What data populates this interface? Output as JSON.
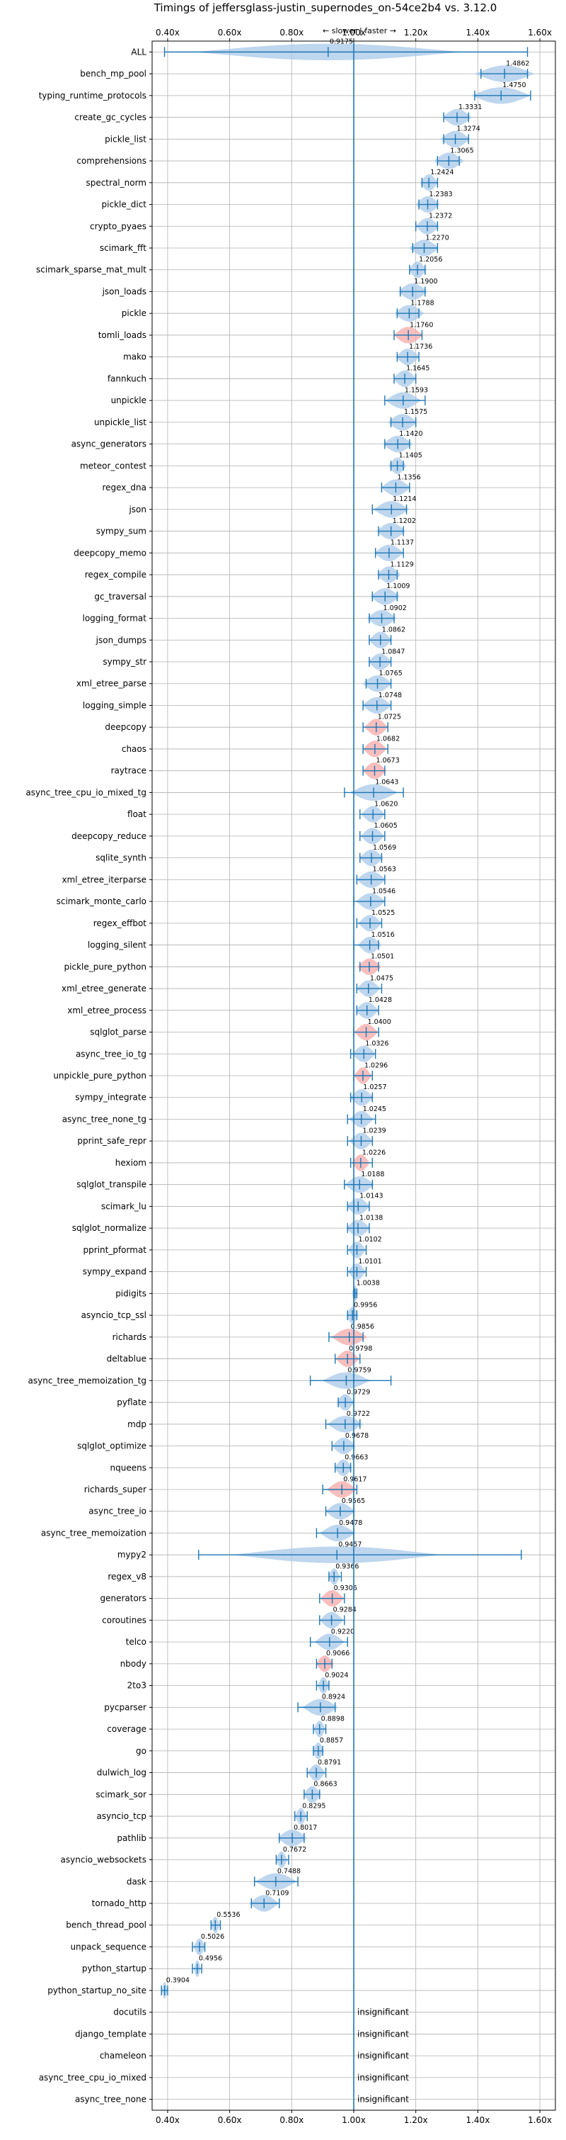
{
  "chart_data": {
    "type": "violin",
    "title": "Timings of jeffersglass-justin_supernodes_on-54ce2b4 vs. 3.12.0",
    "direction_label": "← slower | faster →",
    "xlim": [
      0.35,
      1.65
    ],
    "xticks": [
      0.4,
      0.6,
      0.8,
      1.0,
      1.2,
      1.4,
      1.6
    ],
    "xtick_labels": [
      "0.40x",
      "0.60x",
      "0.80x",
      "1.00x",
      "1.20x",
      "1.40x",
      "1.60x"
    ],
    "reference_line": 1.0,
    "grid": true,
    "colors": {
      "violin": "#a8c8e8",
      "violin_highlight": "#f4a8a8",
      "errorbar": "#1f77b4",
      "grid": "#b0b0b0"
    },
    "benchmarks": [
      {
        "name": "ALL",
        "value": 0.9175,
        "label": "0.9175",
        "lo": 0.39,
        "hi": 1.56,
        "spread": 0.45,
        "highlight": false
      },
      {
        "name": "bench_mp_pool",
        "value": 1.4862,
        "label": "1.4862",
        "lo": 1.41,
        "hi": 1.56,
        "spread": 0.1,
        "highlight": false
      },
      {
        "name": "typing_runtime_protocols",
        "value": 1.475,
        "label": "1.4750",
        "lo": 1.39,
        "hi": 1.57,
        "spread": 0.1,
        "highlight": false
      },
      {
        "name": "create_gc_cycles",
        "value": 1.3331,
        "label": "1.3331",
        "lo": 1.29,
        "hi": 1.37,
        "spread": 0.05,
        "highlight": false
      },
      {
        "name": "pickle_list",
        "value": 1.3274,
        "label": "1.3274",
        "lo": 1.29,
        "hi": 1.37,
        "spread": 0.05,
        "highlight": false
      },
      {
        "name": "comprehensions",
        "value": 1.3065,
        "label": "1.3065",
        "lo": 1.27,
        "hi": 1.34,
        "spread": 0.05,
        "highlight": false
      },
      {
        "name": "spectral_norm",
        "value": 1.2424,
        "label": "1.2424",
        "lo": 1.22,
        "hi": 1.27,
        "spread": 0.03,
        "highlight": false
      },
      {
        "name": "pickle_dict",
        "value": 1.2383,
        "label": "1.2383",
        "lo": 1.21,
        "hi": 1.27,
        "spread": 0.04,
        "highlight": false
      },
      {
        "name": "crypto_pyaes",
        "value": 1.2372,
        "label": "1.2372",
        "lo": 1.2,
        "hi": 1.27,
        "spread": 0.04,
        "highlight": false
      },
      {
        "name": "scimark_fft",
        "value": 1.227,
        "label": "1.2270",
        "lo": 1.19,
        "hi": 1.27,
        "spread": 0.05,
        "highlight": false
      },
      {
        "name": "scimark_sparse_mat_mult",
        "value": 1.2056,
        "label": "1.2056",
        "lo": 1.18,
        "hi": 1.23,
        "spread": 0.03,
        "highlight": false
      },
      {
        "name": "json_loads",
        "value": 1.19,
        "label": "1.1900",
        "lo": 1.15,
        "hi": 1.23,
        "spread": 0.05,
        "highlight": false
      },
      {
        "name": "pickle",
        "value": 1.1788,
        "label": "1.1788",
        "lo": 1.14,
        "hi": 1.21,
        "spread": 0.05,
        "highlight": false
      },
      {
        "name": "tomli_loads",
        "value": 1.176,
        "label": "1.1760",
        "lo": 1.13,
        "hi": 1.22,
        "spread": 0.05,
        "highlight": true
      },
      {
        "name": "mako",
        "value": 1.1736,
        "label": "1.1736",
        "lo": 1.14,
        "hi": 1.21,
        "spread": 0.04,
        "highlight": false
      },
      {
        "name": "fannkuch",
        "value": 1.1645,
        "label": "1.1645",
        "lo": 1.13,
        "hi": 1.2,
        "spread": 0.04,
        "highlight": false
      },
      {
        "name": "unpickle",
        "value": 1.1593,
        "label": "1.1593",
        "lo": 1.1,
        "hi": 1.23,
        "spread": 0.06,
        "highlight": false
      },
      {
        "name": "unpickle_list",
        "value": 1.1575,
        "label": "1.1575",
        "lo": 1.12,
        "hi": 1.2,
        "spread": 0.05,
        "highlight": false
      },
      {
        "name": "async_generators",
        "value": 1.142,
        "label": "1.1420",
        "lo": 1.1,
        "hi": 1.18,
        "spread": 0.05,
        "highlight": false
      },
      {
        "name": "meteor_contest",
        "value": 1.1405,
        "label": "1.1405",
        "lo": 1.12,
        "hi": 1.16,
        "spread": 0.03,
        "highlight": false
      },
      {
        "name": "regex_dna",
        "value": 1.1356,
        "label": "1.1356",
        "lo": 1.09,
        "hi": 1.18,
        "spread": 0.05,
        "highlight": false
      },
      {
        "name": "json",
        "value": 1.1214,
        "label": "1.1214",
        "lo": 1.06,
        "hi": 1.17,
        "spread": 0.06,
        "highlight": false
      },
      {
        "name": "sympy_sum",
        "value": 1.1202,
        "label": "1.1202",
        "lo": 1.08,
        "hi": 1.16,
        "spread": 0.05,
        "highlight": false
      },
      {
        "name": "deepcopy_memo",
        "value": 1.1137,
        "label": "1.1137",
        "lo": 1.07,
        "hi": 1.16,
        "spread": 0.05,
        "highlight": false
      },
      {
        "name": "regex_compile",
        "value": 1.1129,
        "label": "1.1129",
        "lo": 1.08,
        "hi": 1.14,
        "spread": 0.04,
        "highlight": false
      },
      {
        "name": "gc_traversal",
        "value": 1.1009,
        "label": "1.1009",
        "lo": 1.06,
        "hi": 1.14,
        "spread": 0.05,
        "highlight": false
      },
      {
        "name": "logging_format",
        "value": 1.0902,
        "label": "1.0902",
        "lo": 1.05,
        "hi": 1.13,
        "spread": 0.05,
        "highlight": false
      },
      {
        "name": "json_dumps",
        "value": 1.0862,
        "label": "1.0862",
        "lo": 1.05,
        "hi": 1.12,
        "spread": 0.04,
        "highlight": false
      },
      {
        "name": "sympy_str",
        "value": 1.0847,
        "label": "1.0847",
        "lo": 1.05,
        "hi": 1.12,
        "spread": 0.04,
        "highlight": false
      },
      {
        "name": "xml_etree_parse",
        "value": 1.0765,
        "label": "1.0765",
        "lo": 1.04,
        "hi": 1.12,
        "spread": 0.05,
        "highlight": false
      },
      {
        "name": "logging_simple",
        "value": 1.0748,
        "label": "1.0748",
        "lo": 1.03,
        "hi": 1.12,
        "spread": 0.05,
        "highlight": false
      },
      {
        "name": "deepcopy",
        "value": 1.0725,
        "label": "1.0725",
        "lo": 1.03,
        "hi": 1.11,
        "spread": 0.04,
        "highlight": true
      },
      {
        "name": "chaos",
        "value": 1.0682,
        "label": "1.0682",
        "lo": 1.03,
        "hi": 1.11,
        "spread": 0.04,
        "highlight": true
      },
      {
        "name": "raytrace",
        "value": 1.0673,
        "label": "1.0673",
        "lo": 1.03,
        "hi": 1.1,
        "spread": 0.04,
        "highlight": true
      },
      {
        "name": "async_tree_cpu_io_mixed_tg",
        "value": 1.0643,
        "label": "1.0643",
        "lo": 0.97,
        "hi": 1.16,
        "spread": 0.08,
        "highlight": false
      },
      {
        "name": "float",
        "value": 1.062,
        "label": "1.0620",
        "lo": 1.02,
        "hi": 1.1,
        "spread": 0.04,
        "highlight": false
      },
      {
        "name": "deepcopy_reduce",
        "value": 1.0605,
        "label": "1.0605",
        "lo": 1.02,
        "hi": 1.1,
        "spread": 0.04,
        "highlight": false
      },
      {
        "name": "sqlite_synth",
        "value": 1.0569,
        "label": "1.0569",
        "lo": 1.02,
        "hi": 1.09,
        "spread": 0.04,
        "highlight": false
      },
      {
        "name": "xml_etree_iterparse",
        "value": 1.0563,
        "label": "1.0563",
        "lo": 1.01,
        "hi": 1.1,
        "spread": 0.05,
        "highlight": false
      },
      {
        "name": "scimark_monte_carlo",
        "value": 1.0546,
        "label": "1.0546",
        "lo": 1.0,
        "hi": 1.1,
        "spread": 0.05,
        "highlight": false
      },
      {
        "name": "regex_effbot",
        "value": 1.0525,
        "label": "1.0525",
        "lo": 1.01,
        "hi": 1.09,
        "spread": 0.04,
        "highlight": false
      },
      {
        "name": "logging_silent",
        "value": 1.0516,
        "label": "1.0516",
        "lo": 1.0,
        "hi": 1.08,
        "spread": 0.04,
        "highlight": false
      },
      {
        "name": "pickle_pure_python",
        "value": 1.0501,
        "label": "1.0501",
        "lo": 1.02,
        "hi": 1.08,
        "spread": 0.04,
        "highlight": true
      },
      {
        "name": "xml_etree_generate",
        "value": 1.0475,
        "label": "1.0475",
        "lo": 1.01,
        "hi": 1.09,
        "spread": 0.04,
        "highlight": false
      },
      {
        "name": "xml_etree_process",
        "value": 1.0428,
        "label": "1.0428",
        "lo": 1.01,
        "hi": 1.08,
        "spread": 0.04,
        "highlight": false
      },
      {
        "name": "sqlglot_parse",
        "value": 1.04,
        "label": "1.0400",
        "lo": 1.0,
        "hi": 1.08,
        "spread": 0.04,
        "highlight": true
      },
      {
        "name": "async_tree_io_tg",
        "value": 1.0326,
        "label": "1.0326",
        "lo": 0.99,
        "hi": 1.07,
        "spread": 0.04,
        "highlight": false
      },
      {
        "name": "unpickle_pure_python",
        "value": 1.0296,
        "label": "1.0296",
        "lo": 1.0,
        "hi": 1.06,
        "spread": 0.03,
        "highlight": true
      },
      {
        "name": "sympy_integrate",
        "value": 1.0257,
        "label": "1.0257",
        "lo": 0.99,
        "hi": 1.06,
        "spread": 0.04,
        "highlight": false
      },
      {
        "name": "async_tree_none_tg",
        "value": 1.0245,
        "label": "1.0245",
        "lo": 0.98,
        "hi": 1.07,
        "spread": 0.04,
        "highlight": false
      },
      {
        "name": "pprint_safe_repr",
        "value": 1.0239,
        "label": "1.0239",
        "lo": 0.98,
        "hi": 1.06,
        "spread": 0.04,
        "highlight": false
      },
      {
        "name": "hexiom",
        "value": 1.0226,
        "label": "1.0226",
        "lo": 0.99,
        "hi": 1.06,
        "spread": 0.03,
        "highlight": true
      },
      {
        "name": "sqlglot_transpile",
        "value": 1.0188,
        "label": "1.0188",
        "lo": 0.97,
        "hi": 1.06,
        "spread": 0.05,
        "highlight": false
      },
      {
        "name": "scimark_lu",
        "value": 1.0143,
        "label": "1.0143",
        "lo": 0.98,
        "hi": 1.05,
        "spread": 0.04,
        "highlight": false
      },
      {
        "name": "sqlglot_normalize",
        "value": 1.0138,
        "label": "1.0138",
        "lo": 0.98,
        "hi": 1.05,
        "spread": 0.04,
        "highlight": false
      },
      {
        "name": "pprint_pformat",
        "value": 1.0102,
        "label": "1.0102",
        "lo": 0.98,
        "hi": 1.04,
        "spread": 0.03,
        "highlight": false
      },
      {
        "name": "sympy_expand",
        "value": 1.0101,
        "label": "1.0101",
        "lo": 0.98,
        "hi": 1.04,
        "spread": 0.03,
        "highlight": false
      },
      {
        "name": "pidigits",
        "value": 1.0038,
        "label": "1.0038",
        "lo": 1.0,
        "hi": 1.01,
        "spread": 0.01,
        "highlight": false
      },
      {
        "name": "asyncio_tcp_ssl",
        "value": 0.9956,
        "label": "0.9956",
        "lo": 0.98,
        "hi": 1.01,
        "spread": 0.02,
        "highlight": false
      },
      {
        "name": "richards",
        "value": 0.9856,
        "label": "0.9856",
        "lo": 0.92,
        "hi": 1.03,
        "spread": 0.06,
        "highlight": true
      },
      {
        "name": "deltablue",
        "value": 0.9798,
        "label": "0.9798",
        "lo": 0.94,
        "hi": 1.02,
        "spread": 0.04,
        "highlight": true
      },
      {
        "name": "async_tree_memoization_tg",
        "value": 0.9759,
        "label": "0.9759",
        "lo": 0.86,
        "hi": 1.12,
        "spread": 0.08,
        "highlight": false
      },
      {
        "name": "pyflate",
        "value": 0.9729,
        "label": "0.9729",
        "lo": 0.95,
        "hi": 1.0,
        "spread": 0.03,
        "highlight": false
      },
      {
        "name": "mdp",
        "value": 0.9722,
        "label": "0.9722",
        "lo": 0.91,
        "hi": 1.02,
        "spread": 0.06,
        "highlight": false
      },
      {
        "name": "sqlglot_optimize",
        "value": 0.9678,
        "label": "0.9678",
        "lo": 0.93,
        "hi": 1.0,
        "spread": 0.04,
        "highlight": false
      },
      {
        "name": "nqueens",
        "value": 0.9663,
        "label": "0.9663",
        "lo": 0.94,
        "hi": 0.99,
        "spread": 0.03,
        "highlight": false
      },
      {
        "name": "richards_super",
        "value": 0.9617,
        "label": "0.9617",
        "lo": 0.9,
        "hi": 1.01,
        "spread": 0.05,
        "highlight": true
      },
      {
        "name": "async_tree_io",
        "value": 0.9565,
        "label": "0.9565",
        "lo": 0.91,
        "hi": 1.0,
        "spread": 0.05,
        "highlight": false
      },
      {
        "name": "async_tree_memoization",
        "value": 0.9478,
        "label": "0.9478",
        "lo": 0.88,
        "hi": 1.0,
        "spread": 0.06,
        "highlight": false
      },
      {
        "name": "mypy2",
        "value": 0.9457,
        "label": "0.9457",
        "lo": 0.5,
        "hi": 1.54,
        "spread": 0.35,
        "highlight": false
      },
      {
        "name": "regex_v8",
        "value": 0.9366,
        "label": "0.9366",
        "lo": 0.92,
        "hi": 0.96,
        "spread": 0.02,
        "highlight": false
      },
      {
        "name": "generators",
        "value": 0.9306,
        "label": "0.9306",
        "lo": 0.89,
        "hi": 0.97,
        "spread": 0.04,
        "highlight": true
      },
      {
        "name": "coroutines",
        "value": 0.9284,
        "label": "0.9284",
        "lo": 0.89,
        "hi": 0.97,
        "spread": 0.04,
        "highlight": false
      },
      {
        "name": "telco",
        "value": 0.922,
        "label": "0.9220",
        "lo": 0.86,
        "hi": 0.98,
        "spread": 0.05,
        "highlight": false
      },
      {
        "name": "nbody",
        "value": 0.9066,
        "label": "0.9066",
        "lo": 0.88,
        "hi": 0.93,
        "spread": 0.03,
        "highlight": true
      },
      {
        "name": "2to3",
        "value": 0.9024,
        "label": "0.9024",
        "lo": 0.88,
        "hi": 0.92,
        "spread": 0.02,
        "highlight": false
      },
      {
        "name": "pycparser",
        "value": 0.8924,
        "label": "0.8924",
        "lo": 0.82,
        "hi": 0.94,
        "spread": 0.06,
        "highlight": false
      },
      {
        "name": "coverage",
        "value": 0.8898,
        "label": "0.8898",
        "lo": 0.87,
        "hi": 0.91,
        "spread": 0.02,
        "highlight": false
      },
      {
        "name": "go",
        "value": 0.8857,
        "label": "0.8857",
        "lo": 0.87,
        "hi": 0.9,
        "spread": 0.02,
        "highlight": false
      },
      {
        "name": "dulwich_log",
        "value": 0.8791,
        "label": "0.8791",
        "lo": 0.85,
        "hi": 0.91,
        "spread": 0.03,
        "highlight": false
      },
      {
        "name": "scimark_sor",
        "value": 0.8663,
        "label": "0.8663",
        "lo": 0.84,
        "hi": 0.89,
        "spread": 0.03,
        "highlight": false
      },
      {
        "name": "asyncio_tcp",
        "value": 0.8295,
        "label": "0.8295",
        "lo": 0.81,
        "hi": 0.85,
        "spread": 0.02,
        "highlight": false
      },
      {
        "name": "pathlib",
        "value": 0.8017,
        "label": "0.8017",
        "lo": 0.76,
        "hi": 0.84,
        "spread": 0.05,
        "highlight": false
      },
      {
        "name": "asyncio_websockets",
        "value": 0.7672,
        "label": "0.7672",
        "lo": 0.75,
        "hi": 0.79,
        "spread": 0.02,
        "highlight": false
      },
      {
        "name": "dask",
        "value": 0.7488,
        "label": "0.7488",
        "lo": 0.68,
        "hi": 0.82,
        "spread": 0.07,
        "highlight": false
      },
      {
        "name": "tornado_http",
        "value": 0.7109,
        "label": "0.7109",
        "lo": 0.67,
        "hi": 0.76,
        "spread": 0.05,
        "highlight": false
      },
      {
        "name": "bench_thread_pool",
        "value": 0.5536,
        "label": "0.5536",
        "lo": 0.54,
        "hi": 0.57,
        "spread": 0.015,
        "highlight": false
      },
      {
        "name": "unpack_sequence",
        "value": 0.5026,
        "label": "0.5026",
        "lo": 0.48,
        "hi": 0.52,
        "spread": 0.02,
        "highlight": false
      },
      {
        "name": "python_startup",
        "value": 0.4956,
        "label": "0.4956",
        "lo": 0.48,
        "hi": 0.51,
        "spread": 0.012,
        "highlight": false
      },
      {
        "name": "python_startup_no_site",
        "value": 0.3904,
        "label": "0.3904",
        "lo": 0.38,
        "hi": 0.4,
        "spread": 0.01,
        "highlight": false
      },
      {
        "name": "docutils",
        "value": null,
        "label": "insignificant",
        "insignificant": true
      },
      {
        "name": "django_template",
        "value": null,
        "label": "insignificant",
        "insignificant": true
      },
      {
        "name": "chameleon",
        "value": null,
        "label": "insignificant",
        "insignificant": true
      },
      {
        "name": "async_tree_cpu_io_mixed",
        "value": null,
        "label": "insignificant",
        "insignificant": true
      },
      {
        "name": "async_tree_none",
        "value": null,
        "label": "insignificant",
        "insignificant": true
      }
    ]
  }
}
